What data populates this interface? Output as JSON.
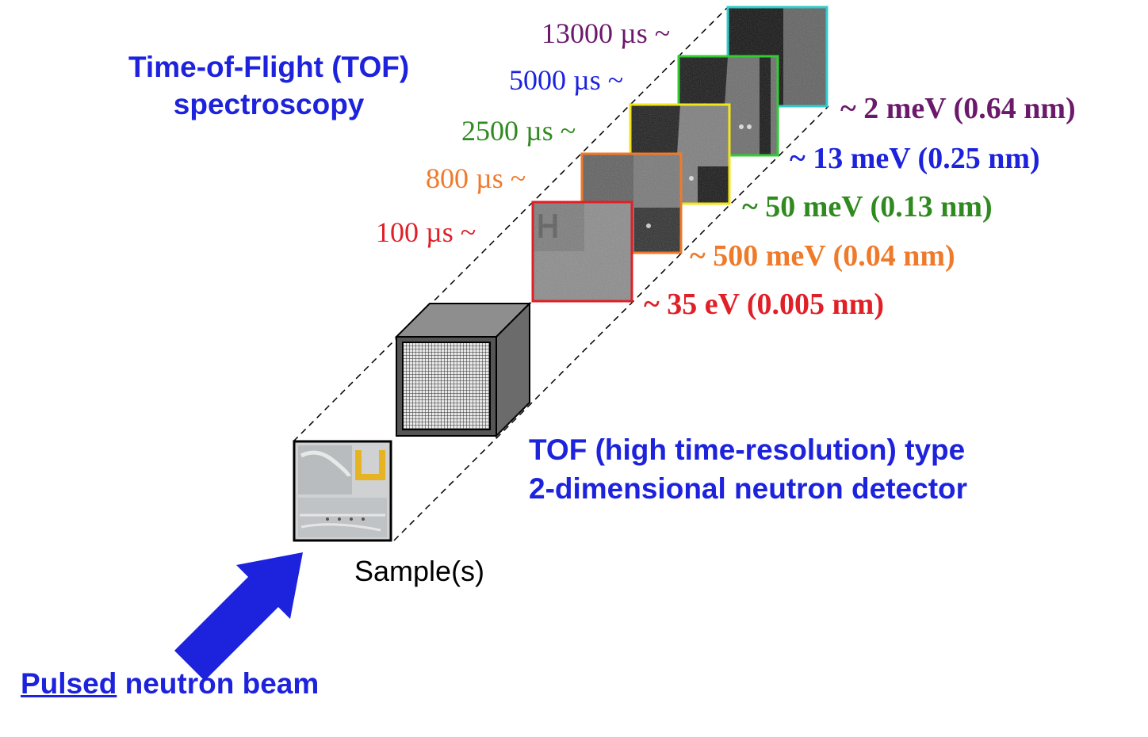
{
  "title": {
    "line1": "Time-of-Flight (TOF)",
    "line2": "spectroscopy"
  },
  "detector": {
    "line1": "TOF (high time-resolution) type",
    "line2": "2-dimensional neutron detector"
  },
  "sample": {
    "label": "Sample(s)"
  },
  "beam": {
    "emphasis": "Pulsed",
    "rest": " neutron beam"
  },
  "frames": [
    {
      "tof": "100 µs ~",
      "energy": "~ 35 eV (0.005 nm)",
      "color": "#e01f26"
    },
    {
      "tof": "800 µs ~",
      "energy": "~ 500 meV (0.04 nm)",
      "color": "#ef7a2a"
    },
    {
      "tof": "2500 µs ~",
      "energy": "~ 50 meV (0.13 nm)",
      "color": "#2f8a1f"
    },
    {
      "tof": "5000 µs ~",
      "energy": "~ 13 meV (0.25 nm)",
      "color": "#1d22dd"
    },
    {
      "tof": "13000 µs ~",
      "energy": "~ 2 meV (0.64 nm)",
      "color": "#6b1a6b"
    }
  ],
  "frame_borders": [
    "#e01f26",
    "#ef7a2a",
    "#f2e51b",
    "#33cc33",
    "#33cccc"
  ],
  "colors": {
    "accent": "#1d22dd",
    "sample_letter": "#e6b422",
    "detector_face": "#333333",
    "detector_side": "#666666"
  }
}
